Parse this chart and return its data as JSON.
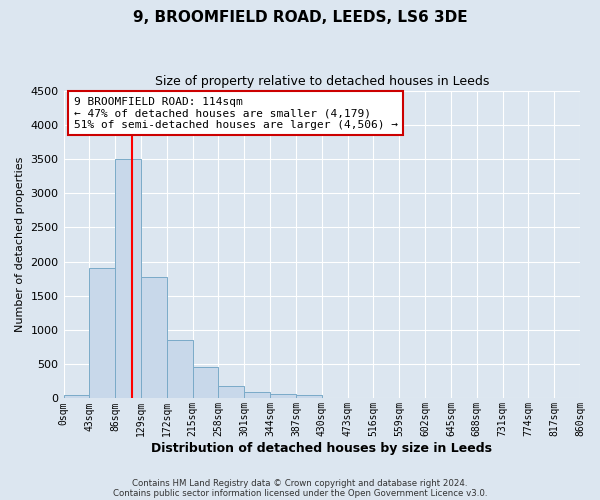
{
  "title": "9, BROOMFIELD ROAD, LEEDS, LS6 3DE",
  "subtitle": "Size of property relative to detached houses in Leeds",
  "xlabel": "Distribution of detached houses by size in Leeds",
  "ylabel": "Number of detached properties",
  "bar_values": [
    50,
    1900,
    3500,
    1780,
    860,
    460,
    175,
    100,
    70,
    55,
    0,
    0,
    0,
    0,
    0,
    0,
    0,
    0,
    0,
    0
  ],
  "bin_edges": [
    0,
    43,
    86,
    129,
    172,
    215,
    258,
    301,
    344,
    387,
    430,
    473,
    516,
    559,
    602,
    645,
    688,
    731,
    774,
    817,
    860
  ],
  "tick_labels": [
    "0sqm",
    "43sqm",
    "86sqm",
    "129sqm",
    "172sqm",
    "215sqm",
    "258sqm",
    "301sqm",
    "344sqm",
    "387sqm",
    "430sqm",
    "473sqm",
    "516sqm",
    "559sqm",
    "602sqm",
    "645sqm",
    "688sqm",
    "731sqm",
    "774sqm",
    "817sqm",
    "860sqm"
  ],
  "bar_color": "#c8d8ea",
  "bar_edge_color": "#7aaac8",
  "property_size": 114,
  "vline_color": "red",
  "annotation_line1": "9 BROOMFIELD ROAD: 114sqm",
  "annotation_line2": "← 47% of detached houses are smaller (4,179)",
  "annotation_line3": "51% of semi-detached houses are larger (4,506) →",
  "annotation_box_color": "white",
  "annotation_box_edge": "#cc0000",
  "ylim": [
    0,
    4500
  ],
  "yticks": [
    0,
    500,
    1000,
    1500,
    2000,
    2500,
    3000,
    3500,
    4000,
    4500
  ],
  "footer1": "Contains HM Land Registry data © Crown copyright and database right 2024.",
  "footer2": "Contains public sector information licensed under the Open Government Licence v3.0.",
  "bg_color": "#dce6f0",
  "plot_bg_color": "#dce6f0",
  "grid_color": "white"
}
